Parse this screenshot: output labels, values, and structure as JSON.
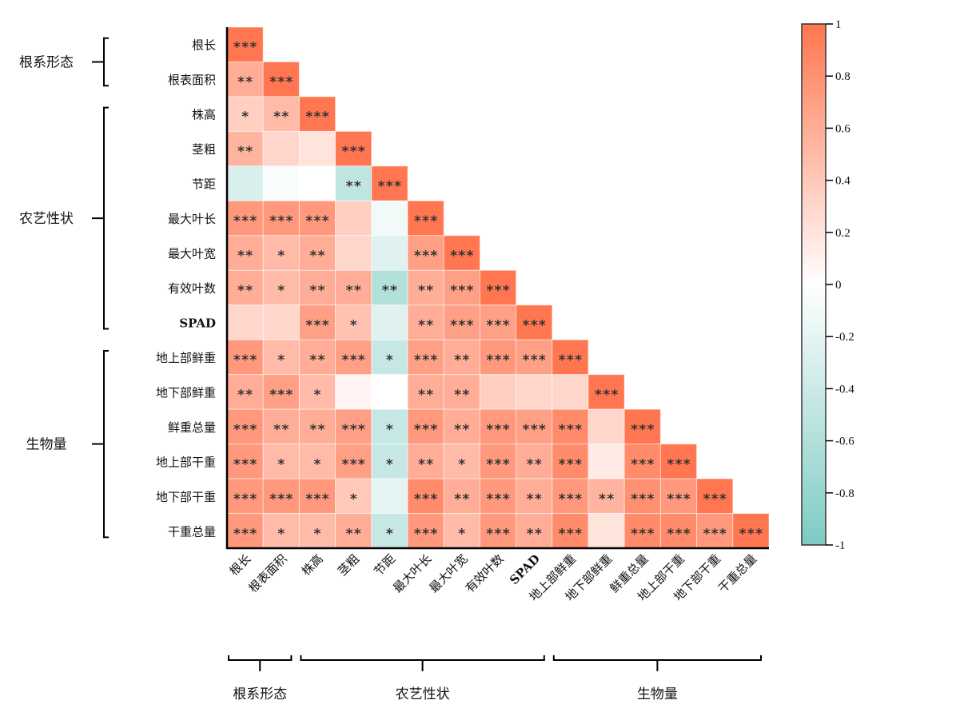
{
  "chart_data": {
    "type": "heatmap",
    "title": "",
    "variables": [
      "根长",
      "根表面积",
      "株高",
      "茎粗",
      "节距",
      "最大叶长",
      "最大叶宽",
      "有效叶数",
      "SPAD",
      "地上部鲜重",
      "地下部鲜重",
      "鲜重总量",
      "地上部干重",
      "地下部干重",
      "干重总量"
    ],
    "groups": [
      {
        "name": "根系形态",
        "from": 0,
        "to": 1
      },
      {
        "name": "农艺性状",
        "from": 2,
        "to": 8
      },
      {
        "name": "生物量",
        "from": 9,
        "to": 14
      }
    ],
    "values": [
      [
        1
      ],
      [
        0.6,
        1
      ],
      [
        0.35,
        0.5,
        1
      ],
      [
        0.55,
        0.3,
        0.2,
        1
      ],
      [
        -0.3,
        -0.05,
        0,
        -0.5,
        1
      ],
      [
        0.75,
        0.75,
        0.75,
        0.35,
        -0.1,
        1
      ],
      [
        0.6,
        0.5,
        0.6,
        0.3,
        -0.25,
        0.7,
        1
      ],
      [
        0.6,
        0.5,
        0.6,
        0.6,
        -0.6,
        0.6,
        0.7,
        1
      ],
      [
        0.3,
        0.3,
        0.7,
        0.45,
        -0.25,
        0.6,
        0.7,
        0.7,
        1
      ],
      [
        0.75,
        0.5,
        0.6,
        0.7,
        -0.45,
        0.7,
        0.6,
        0.75,
        0.7,
        1
      ],
      [
        0.6,
        0.7,
        0.5,
        0.08,
        0,
        0.6,
        0.6,
        0.35,
        0.3,
        0.3,
        1
      ],
      [
        0.75,
        0.6,
        0.6,
        0.7,
        -0.45,
        0.75,
        0.6,
        0.75,
        0.7,
        0.85,
        0.3,
        1
      ],
      [
        0.75,
        0.5,
        0.5,
        0.7,
        -0.45,
        0.6,
        0.5,
        0.75,
        0.6,
        0.85,
        0.15,
        0.85,
        1
      ],
      [
        0.75,
        0.75,
        0.75,
        0.4,
        -0.2,
        0.85,
        0.6,
        0.75,
        0.6,
        0.75,
        0.55,
        0.8,
        0.75,
        1
      ],
      [
        0.75,
        0.5,
        0.5,
        0.6,
        -0.45,
        0.75,
        0.5,
        0.75,
        0.6,
        0.85,
        0.2,
        0.85,
        0.85,
        0.75,
        1
      ]
    ],
    "significance": [
      [
        "***"
      ],
      [
        "**",
        "***"
      ],
      [
        "*",
        "**",
        "***"
      ],
      [
        "**",
        "",
        "",
        "***"
      ],
      [
        "",
        "",
        "",
        "**",
        "***"
      ],
      [
        "***",
        "***",
        "***",
        "",
        "",
        "***"
      ],
      [
        "**",
        "*",
        "**",
        "",
        "",
        "***",
        "***"
      ],
      [
        "**",
        "*",
        "**",
        "**",
        "**",
        "**",
        "***",
        "***"
      ],
      [
        "",
        "",
        "***",
        "*",
        "",
        "**",
        "***",
        "***",
        "***"
      ],
      [
        "***",
        "*",
        "**",
        "***",
        "*",
        "***",
        "**",
        "***",
        "***",
        "***"
      ],
      [
        "**",
        "***",
        "*",
        "",
        "",
        "**",
        "**",
        "",
        "",
        "",
        "***"
      ],
      [
        "***",
        "**",
        "**",
        "***",
        "*",
        "***",
        "**",
        "***",
        "***",
        "***",
        "",
        "***"
      ],
      [
        "***",
        "*",
        "*",
        "***",
        "*",
        "**",
        "*",
        "***",
        "**",
        "***",
        "",
        "***",
        "***"
      ],
      [
        "***",
        "***",
        "***",
        "*",
        "",
        "***",
        "**",
        "***",
        "**",
        "***",
        "**",
        "***",
        "***",
        "***"
      ],
      [
        "***",
        "*",
        "*",
        "**",
        "*",
        "***",
        "*",
        "***",
        "**",
        "***",
        "",
        "***",
        "***",
        "***",
        "***"
      ]
    ],
    "colorbar": {
      "range": [
        -1,
        1
      ],
      "ticks": [
        "1",
        "0.8",
        "0.6",
        "0.4",
        "0.2",
        "0",
        "-0.2",
        "-0.4",
        "-0.6",
        "-0.8",
        "-1"
      ],
      "tick_values": [
        1,
        0.8,
        0.6,
        0.4,
        0.2,
        0,
        -0.2,
        -0.4,
        -0.6,
        -0.8,
        -1
      ]
    },
    "colors": {
      "positive": "#ff7650",
      "zero": "#ffffff",
      "negative": "#7ecbc3"
    },
    "legend": "right"
  }
}
